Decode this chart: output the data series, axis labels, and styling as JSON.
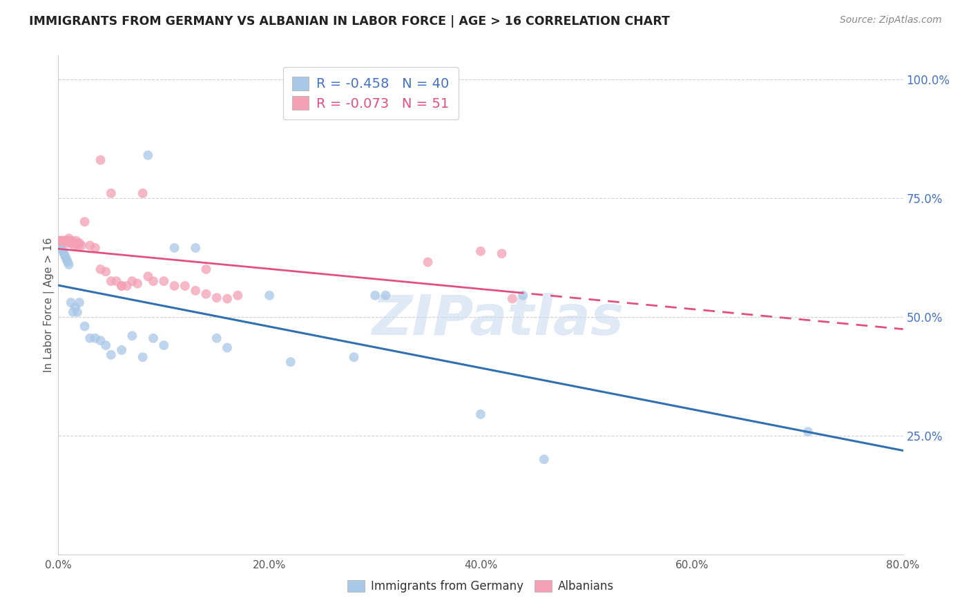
{
  "title": "IMMIGRANTS FROM GERMANY VS ALBANIAN IN LABOR FORCE | AGE > 16 CORRELATION CHART",
  "source": "Source: ZipAtlas.com",
  "ylabel": "In Labor Force | Age > 16",
  "R1": -0.458,
  "N1": 40,
  "R2": -0.073,
  "N2": 51,
  "color_blue": "#A8C8E8",
  "color_pink": "#F4A0B5",
  "line_color_blue": "#3070B0",
  "line_color_pink": "#E05080",
  "legend_label1": "Immigrants from Germany",
  "legend_label2": "Albanians",
  "xlim": [
    0.0,
    0.8
  ],
  "ylim": [
    0.0,
    1.05
  ],
  "yticks": [
    0.25,
    0.5,
    0.75,
    1.0
  ],
  "ytick_labels": [
    "25.0%",
    "50.0%",
    "75.0%",
    "100.0%"
  ],
  "xticks": [
    0.0,
    0.2,
    0.4,
    0.6,
    0.8
  ],
  "xtick_labels": [
    "0.0%",
    "20.0%",
    "40.0%",
    "60.0%",
    "80.0%"
  ],
  "blue_x": [
    0.001,
    0.002,
    0.003,
    0.004,
    0.005,
    0.006,
    0.007,
    0.008,
    0.009,
    0.01,
    0.012,
    0.014,
    0.016,
    0.018,
    0.02,
    0.025,
    0.03,
    0.035,
    0.04,
    0.045,
    0.05,
    0.06,
    0.07,
    0.08,
    0.09,
    0.1,
    0.11,
    0.13,
    0.15,
    0.16,
    0.2,
    0.22,
    0.28,
    0.3,
    0.31,
    0.4,
    0.44,
    0.46,
    0.71,
    0.085
  ],
  "blue_y": [
    0.66,
    0.65,
    0.645,
    0.64,
    0.635,
    0.63,
    0.625,
    0.62,
    0.615,
    0.61,
    0.53,
    0.51,
    0.52,
    0.51,
    0.53,
    0.48,
    0.455,
    0.455,
    0.45,
    0.44,
    0.42,
    0.43,
    0.46,
    0.415,
    0.455,
    0.44,
    0.645,
    0.645,
    0.455,
    0.435,
    0.545,
    0.405,
    0.415,
    0.545,
    0.545,
    0.295,
    0.545,
    0.2,
    0.258,
    0.84
  ],
  "pink_x": [
    0.001,
    0.002,
    0.003,
    0.004,
    0.005,
    0.006,
    0.007,
    0.008,
    0.009,
    0.01,
    0.011,
    0.012,
    0.013,
    0.014,
    0.015,
    0.016,
    0.017,
    0.018,
    0.019,
    0.02,
    0.022,
    0.025,
    0.03,
    0.035,
    0.04,
    0.045,
    0.05,
    0.055,
    0.06,
    0.065,
    0.07,
    0.075,
    0.08,
    0.085,
    0.09,
    0.1,
    0.11,
    0.12,
    0.13,
    0.14,
    0.15,
    0.16,
    0.17,
    0.04,
    0.05,
    0.06,
    0.35,
    0.4,
    0.42,
    0.43,
    0.14
  ],
  "pink_y": [
    0.66,
    0.66,
    0.66,
    0.66,
    0.66,
    0.66,
    0.66,
    0.655,
    0.66,
    0.665,
    0.66,
    0.655,
    0.66,
    0.655,
    0.65,
    0.655,
    0.66,
    0.655,
    0.65,
    0.655,
    0.65,
    0.7,
    0.65,
    0.645,
    0.6,
    0.595,
    0.575,
    0.575,
    0.565,
    0.565,
    0.575,
    0.57,
    0.76,
    0.585,
    0.575,
    0.575,
    0.565,
    0.565,
    0.555,
    0.548,
    0.54,
    0.538,
    0.545,
    0.83,
    0.76,
    0.565,
    0.615,
    0.638,
    0.633,
    0.538,
    0.6
  ],
  "watermark_text": "ZIPatlas",
  "background_color": "#FFFFFF",
  "grid_color": "#CCCCCC"
}
